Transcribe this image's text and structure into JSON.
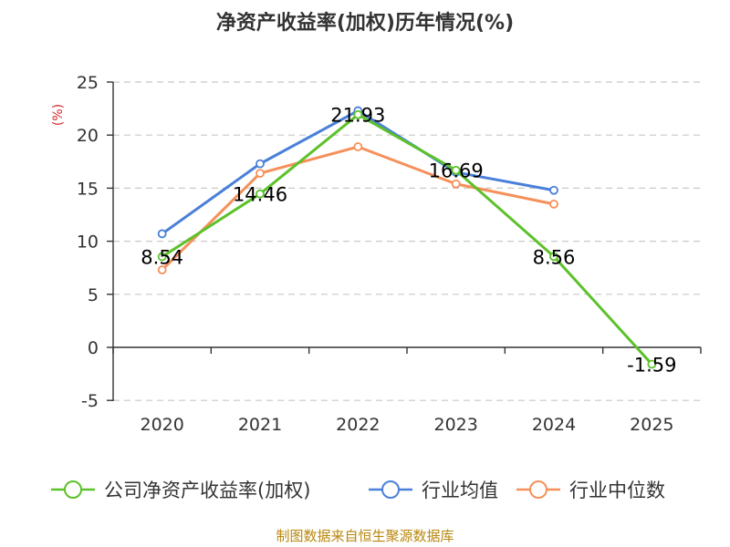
{
  "chart_data": {
    "type": "line",
    "title": "净资产收益率(加权)历年情况(%)",
    "ylabel": "(%)",
    "categories": [
      "2020",
      "2021",
      "2022",
      "2023",
      "2024",
      "2025"
    ],
    "ylim": [
      -5,
      25
    ],
    "yticks": [
      -5,
      0,
      5,
      10,
      15,
      20,
      25
    ],
    "grid": "horizontal-dashed",
    "legend_position": "bottom",
    "series": [
      {
        "name": "公司净资产收益率(加权)",
        "color": "#5cc12a",
        "values": [
          8.54,
          14.46,
          21.93,
          16.69,
          8.56,
          -1.59
        ],
        "labels": [
          "8.54",
          "14.46",
          "21.93",
          "16.69",
          "8.56",
          "-1.59"
        ]
      },
      {
        "name": "行业均值",
        "color": "#4a80d9",
        "values": [
          10.7,
          17.3,
          22.3,
          16.5,
          14.8,
          null
        ]
      },
      {
        "name": "行业中位数",
        "color": "#f5905a",
        "values": [
          7.3,
          16.4,
          18.9,
          15.4,
          13.5,
          null
        ]
      }
    ]
  },
  "source": "制图数据来自恒生聚源数据库"
}
